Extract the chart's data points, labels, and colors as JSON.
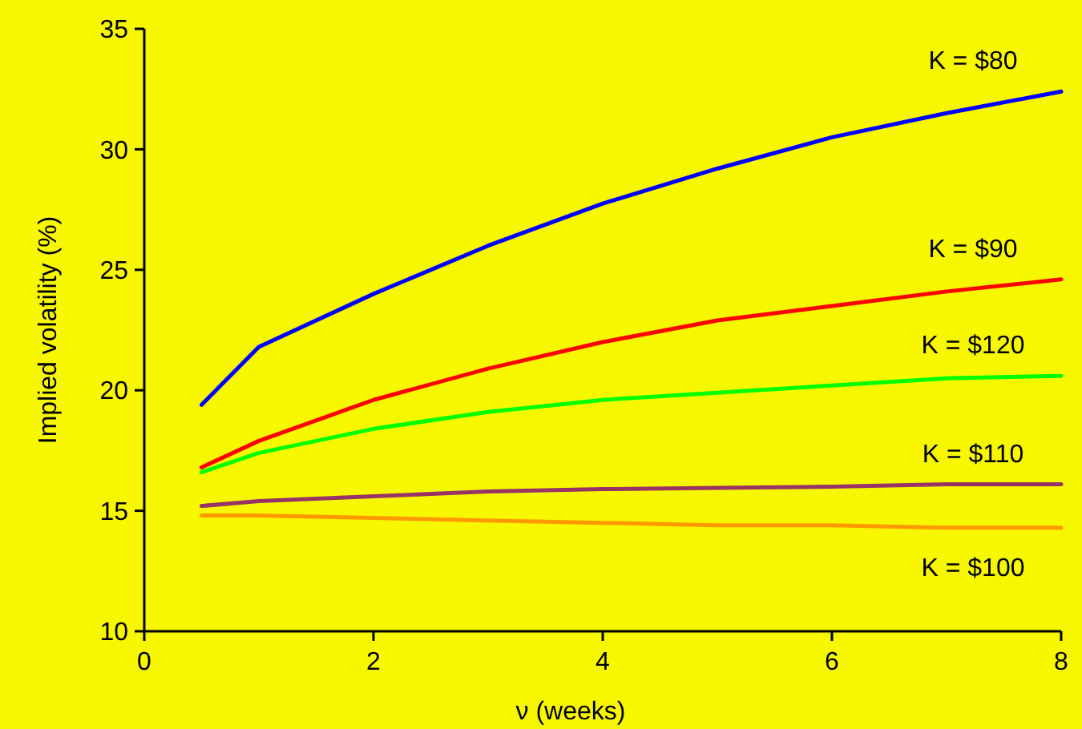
{
  "chart_data": {
    "type": "line",
    "xlabel": "ν (weeks)",
    "ylabel": "Implied volatility (%)",
    "xlim": [
      0,
      8
    ],
    "ylim": [
      10,
      35
    ],
    "xticks": [
      0,
      2,
      4,
      6,
      8
    ],
    "yticks": [
      10,
      15,
      20,
      25,
      30,
      35
    ],
    "grid": false,
    "marker": "none",
    "x": [
      0.5,
      1,
      2,
      3,
      4,
      5,
      6,
      7,
      8
    ],
    "series": [
      {
        "name": "K = $80",
        "color": "#0000ff",
        "values": [
          19.4,
          21.8,
          24.0,
          26.0,
          27.75,
          29.2,
          30.5,
          31.5,
          32.4
        ]
      },
      {
        "name": "K = $90",
        "color": "#ff0000",
        "values": [
          16.8,
          17.9,
          19.6,
          20.9,
          22.0,
          22.9,
          23.5,
          24.1,
          24.6
        ]
      },
      {
        "name": "K = $120",
        "color": "#00ff00",
        "values": [
          16.6,
          17.4,
          18.4,
          19.1,
          19.6,
          19.9,
          20.2,
          20.5,
          20.6
        ]
      },
      {
        "name": "K = $110",
        "color": "#993366",
        "values": [
          15.2,
          15.4,
          15.6,
          15.8,
          15.9,
          15.95,
          16.0,
          16.1,
          16.1
        ]
      },
      {
        "name": "K = $100",
        "color": "#ff9900",
        "values": [
          14.8,
          14.8,
          14.7,
          14.6,
          14.5,
          14.4,
          14.4,
          14.3,
          14.3
        ]
      }
    ]
  }
}
